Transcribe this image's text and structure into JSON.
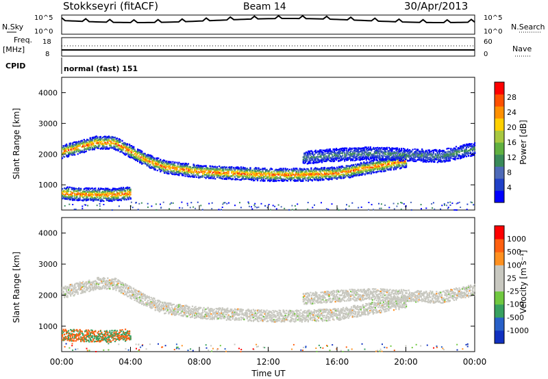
{
  "header": {
    "station": "Stokkseyri (fitACF)",
    "beam": "Beam 14",
    "date": "30/Apr/2013"
  },
  "strip_labels": {
    "nsky": "N.Sky",
    "nsearch": "N.Search",
    "freq_line1": "Freq.",
    "freq_line2": "[MHz]",
    "nave": "Nave",
    "cpid": "CPID",
    "cpid_value": "normal (fast) 151",
    "noise_left_ticks": [
      "10^5",
      "10^0"
    ],
    "noise_right_ticks": [
      "10^5",
      "10^0"
    ],
    "freq_left_ticks": [
      "18",
      "8"
    ],
    "freq_right_ticks": [
      "60",
      "0"
    ]
  },
  "chart_data": [
    {
      "type": "heatmap",
      "name": "power",
      "ylabel": "Slant Range [km]",
      "ylim": [
        180,
        4500
      ],
      "yticks": [
        1000,
        2000,
        3000,
        4000
      ],
      "xlim": [
        0,
        24
      ],
      "colorbar": {
        "label": "Power [dB]",
        "ticks": [
          "28",
          "24",
          "20",
          "16",
          "12",
          "8",
          "4"
        ],
        "colors": [
          "#0000ff",
          "#2040c8",
          "#4e6ab8",
          "#3a8a5a",
          "#60b040",
          "#a8c840",
          "#ffd000",
          "#ff9000",
          "#ff5000",
          "#ff0000"
        ]
      },
      "bands": [
        {
          "label": "main-trace",
          "t": [
            0,
            1,
            2,
            3,
            4,
            5,
            6,
            8,
            10,
            12,
            14,
            16,
            18,
            20
          ],
          "range": [
            2100,
            2250,
            2400,
            2400,
            2100,
            1800,
            1600,
            1450,
            1400,
            1350,
            1350,
            1400,
            1600,
            1800
          ]
        },
        {
          "label": "near-echo",
          "t": [
            0,
            1,
            2,
            3,
            4
          ],
          "range": [
            750,
            720,
            700,
            700,
            750
          ]
        },
        {
          "label": "upper-diffuse",
          "t": [
            14,
            16,
            18,
            20,
            22,
            24
          ],
          "range": [
            1900,
            2000,
            2050,
            2000,
            1950,
            2200
          ]
        }
      ]
    },
    {
      "type": "heatmap",
      "name": "velocity",
      "ylabel": "Slant Range [km]",
      "xlabel": "Time UT",
      "ylim": [
        180,
        4500
      ],
      "yticks": [
        1000,
        2000,
        3000,
        4000
      ],
      "xlim": [
        0,
        24
      ],
      "xticks": [
        "00:00",
        "04:00",
        "08:00",
        "12:00",
        "16:00",
        "20:00",
        "00:00"
      ],
      "colorbar": {
        "label": "Velocity [m s⁻¹]",
        "ticks": [
          "1000",
          "500",
          "100",
          "25",
          "-25",
          "-100",
          "-500",
          "-1000"
        ],
        "colors": [
          "#1030c0",
          "#2860c8",
          "#38a060",
          "#70c840",
          "#c8c8c0",
          "#c8c8c0",
          "#ff9020",
          "#ff6010",
          "#ff0000"
        ]
      }
    }
  ]
}
